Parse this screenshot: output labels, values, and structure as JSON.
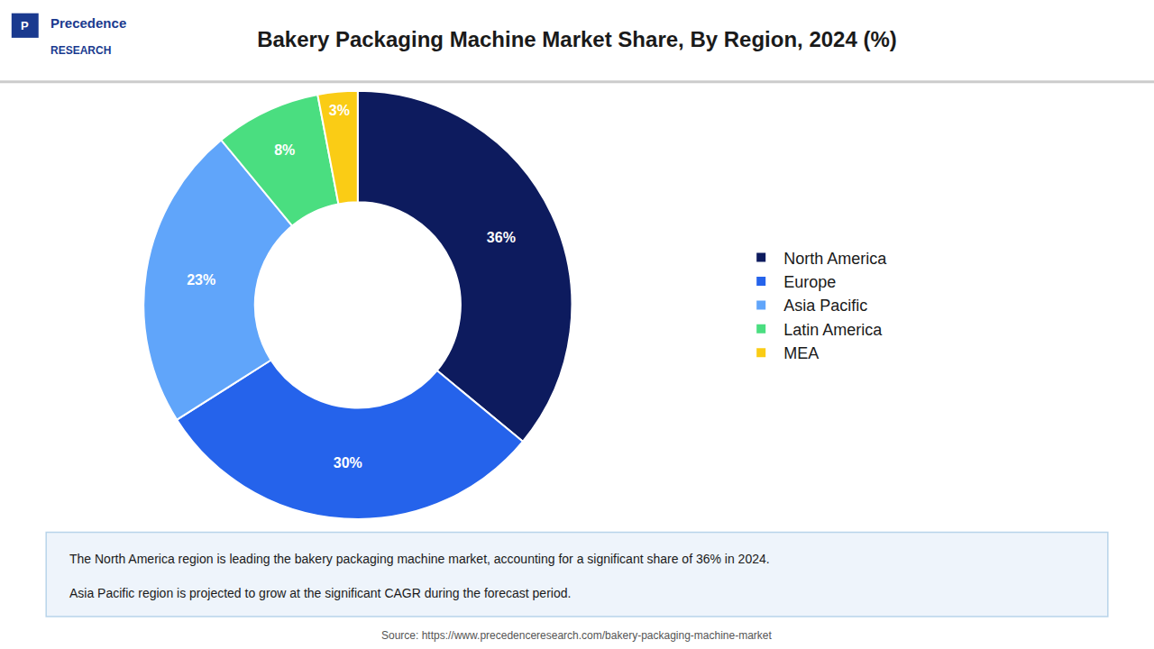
{
  "chart_data": {
    "type": "donut",
    "title": "Bakery Packaging Machine Market Share, By Region, 2024 (%)",
    "categories": [
      "North America",
      "Europe",
      "Asia Pacific",
      "Latin America",
      "MEA"
    ],
    "values": [
      36,
      30,
      23,
      8,
      3
    ],
    "value_labels": [
      "36%",
      "30%",
      "23%",
      "8%",
      "3%"
    ],
    "colors": [
      "#0d1b5e",
      "#2563eb",
      "#60a5fa",
      "#4ade80",
      "#facc15"
    ],
    "data_labels": true,
    "legend": "right",
    "annotations": [
      "P",
      "Precedence",
      "RESEARCH",
      "The North America region is leading the bakery packaging machine market, accounting for a significant share of 36% in 2024.",
      "Asia Pacific region is projected to grow at the significant CAGR during the forecast period.",
      "Source: https://www.precedenceresearch.com/bakery-packaging-machine-market"
    ]
  }
}
